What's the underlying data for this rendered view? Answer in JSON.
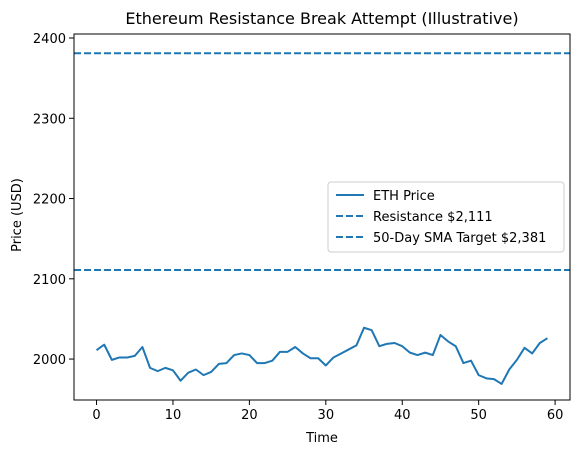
{
  "chart_data": {
    "type": "line",
    "title": "Ethereum Resistance Break Attempt (Illustrative)",
    "xlabel": "Time",
    "ylabel": "Price (USD)",
    "xlim": [
      -2.95,
      61.95
    ],
    "ylim": [
      1949,
      2405
    ],
    "xticks": [
      0,
      10,
      20,
      30,
      40,
      50,
      60
    ],
    "yticks": [
      2000,
      2100,
      2200,
      2300,
      2400
    ],
    "grid": false,
    "legend_position": "center-right",
    "series": [
      {
        "name": "ETH Price",
        "style": "solid",
        "color": "#1f77b4",
        "x": [
          0,
          1,
          2,
          3,
          4,
          5,
          6,
          7,
          8,
          9,
          10,
          11,
          12,
          13,
          14,
          15,
          16,
          17,
          18,
          19,
          20,
          21,
          22,
          23,
          24,
          25,
          26,
          27,
          28,
          29,
          30,
          31,
          32,
          33,
          34,
          35,
          36,
          37,
          38,
          39,
          40,
          41,
          42,
          43,
          44,
          45,
          46,
          47,
          48,
          49,
          50,
          51,
          52,
          53,
          54,
          55,
          56,
          57,
          58,
          59
        ],
        "values": [
          2011,
          2018,
          1999,
          2002,
          2002,
          2004,
          2015,
          1989,
          1985,
          1989,
          1986,
          1973,
          1983,
          1987,
          1980,
          1984,
          1994,
          1995,
          2005,
          2007,
          2005,
          1995,
          1995,
          1998,
          2009,
          2009,
          2015,
          2007,
          2001,
          2001,
          1992,
          2002,
          2007,
          2012,
          2017,
          2039,
          2036,
          2016,
          2019,
          2020,
          2016,
          2008,
          2005,
          2008,
          2005,
          2030,
          2022,
          2016,
          1995,
          1998,
          1980,
          1976,
          1975,
          1969,
          1987,
          1999,
          2014,
          2007,
          2020,
          2026
        ]
      },
      {
        "name": "Resistance $2,111",
        "style": "dashed",
        "color": "#1f77b4",
        "constant": 2111
      },
      {
        "name": "50-Day SMA Target $2,381",
        "style": "dashed",
        "color": "#1f77b4",
        "constant": 2381
      }
    ]
  }
}
